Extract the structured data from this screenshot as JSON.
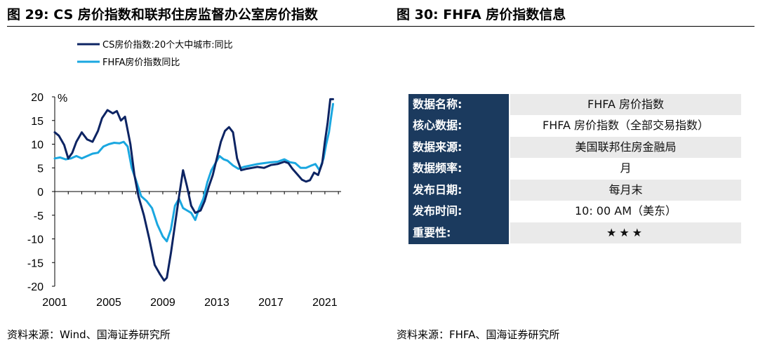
{
  "header": {
    "left_title": "图 29: CS 房价指数和联邦住房监督办公室房价指数",
    "right_title": "图 30:  FHFA 房价指数信息"
  },
  "chart_data": {
    "type": "line",
    "unit_label": "%",
    "x_ticks": [
      2001,
      2005,
      2009,
      2013,
      2017,
      2021
    ],
    "xlim": [
      2001,
      2022.2
    ],
    "ylim": [
      -20,
      20
    ],
    "y_ticks": [
      20,
      15,
      10,
      5,
      0,
      -5,
      -10,
      -15,
      -20
    ],
    "legend_position": "top-left",
    "series": [
      {
        "name": "CS房价指数:20个大中城市:同比",
        "color": "#0d2463",
        "x": [
          2001.0,
          2001.3,
          2001.7,
          2002.0,
          2002.3,
          2002.6,
          2003.0,
          2003.4,
          2003.8,
          2004.2,
          2004.5,
          2004.9,
          2005.3,
          2005.6,
          2005.9,
          2006.2,
          2006.6,
          2006.9,
          2007.2,
          2007.6,
          2008.0,
          2008.4,
          2008.8,
          2009.1,
          2009.3,
          2009.6,
          2009.9,
          2010.2,
          2010.5,
          2010.8,
          2011.1,
          2011.4,
          2011.8,
          2012.1,
          2012.4,
          2012.7,
          2013.0,
          2013.3,
          2013.6,
          2013.9,
          2014.2,
          2014.5,
          2014.8,
          2015.2,
          2015.6,
          2016.0,
          2016.5,
          2017.0,
          2017.5,
          2018.0,
          2018.3,
          2018.6,
          2019.0,
          2019.3,
          2019.6,
          2019.9,
          2020.2,
          2020.5,
          2020.8,
          2021.0,
          2021.2,
          2021.4,
          2021.6
        ],
        "values": [
          12.5,
          11.8,
          9.8,
          7.0,
          8.2,
          10.5,
          12.5,
          11.0,
          10.5,
          12.8,
          15.5,
          17.2,
          16.5,
          17.0,
          15.0,
          15.8,
          10.0,
          3.5,
          -1.0,
          -5.0,
          -10.0,
          -15.5,
          -17.5,
          -18.8,
          -18.2,
          -13.0,
          -7.0,
          -1.0,
          4.5,
          1.0,
          -3.0,
          -4.5,
          -4.0,
          -2.0,
          1.0,
          3.5,
          7.0,
          10.5,
          12.8,
          13.6,
          12.5,
          7.0,
          4.5,
          4.8,
          5.0,
          5.2,
          5.0,
          5.6,
          5.8,
          6.3,
          6.0,
          4.8,
          3.5,
          2.5,
          2.1,
          2.4,
          4.0,
          3.5,
          6.0,
          10.5,
          14.5,
          19.5,
          19.5
        ]
      },
      {
        "name": "FHFA房价指数同比",
        "color": "#1aa7e0",
        "x": [
          2001.0,
          2001.4,
          2001.8,
          2002.2,
          2002.6,
          2003.0,
          2003.4,
          2003.8,
          2004.2,
          2004.6,
          2005.0,
          2005.4,
          2005.8,
          2006.1,
          2006.4,
          2006.7,
          2007.0,
          2007.4,
          2007.8,
          2008.2,
          2008.6,
          2009.0,
          2009.3,
          2009.6,
          2009.9,
          2010.2,
          2010.5,
          2010.8,
          2011.1,
          2011.4,
          2011.7,
          2012.0,
          2012.3,
          2012.6,
          2012.9,
          2013.2,
          2013.5,
          2013.8,
          2014.2,
          2014.6,
          2015.0,
          2015.5,
          2016.0,
          2016.5,
          2017.0,
          2017.5,
          2018.0,
          2018.4,
          2018.8,
          2019.2,
          2019.6,
          2020.0,
          2020.3,
          2020.6,
          2020.9,
          2021.1,
          2021.3,
          2021.5,
          2021.6
        ],
        "values": [
          7.0,
          7.2,
          6.8,
          7.0,
          7.5,
          7.0,
          7.5,
          8.0,
          8.2,
          9.5,
          10.0,
          10.3,
          10.2,
          10.5,
          9.5,
          5.0,
          2.5,
          -1.0,
          -2.0,
          -3.5,
          -7.0,
          -9.5,
          -10.5,
          -8.0,
          -3.0,
          -1.5,
          -3.5,
          -4.0,
          -4.5,
          -6.0,
          -3.5,
          -1.5,
          2.0,
          4.5,
          6.0,
          7.5,
          6.8,
          6.5,
          5.5,
          4.8,
          5.2,
          5.5,
          5.8,
          6.0,
          6.2,
          6.3,
          6.8,
          6.2,
          6.0,
          5.0,
          5.0,
          5.5,
          5.8,
          4.5,
          7.0,
          10.0,
          12.5,
          16.5,
          18.5
        ]
      }
    ]
  },
  "info_table": [
    {
      "key": "数据名称:",
      "value": "FHFA 房价指数"
    },
    {
      "key": "核心数据:",
      "value": "FHFA 房价指数（全部交易指数）"
    },
    {
      "key": "数据来源:",
      "value": "美国联邦住房金融局"
    },
    {
      "key": "数据频率:",
      "value": "月"
    },
    {
      "key": "发布日期:",
      "value": "每月末"
    },
    {
      "key": "发布时间:",
      "value": "10: 00 AM（美东）"
    },
    {
      "key": "重要性:",
      "value": "★★★"
    }
  ],
  "footer": {
    "left_source": "资料来源：Wind、国海证券研究所",
    "right_source": "资料来源：FHFA、国海证券研究所"
  }
}
